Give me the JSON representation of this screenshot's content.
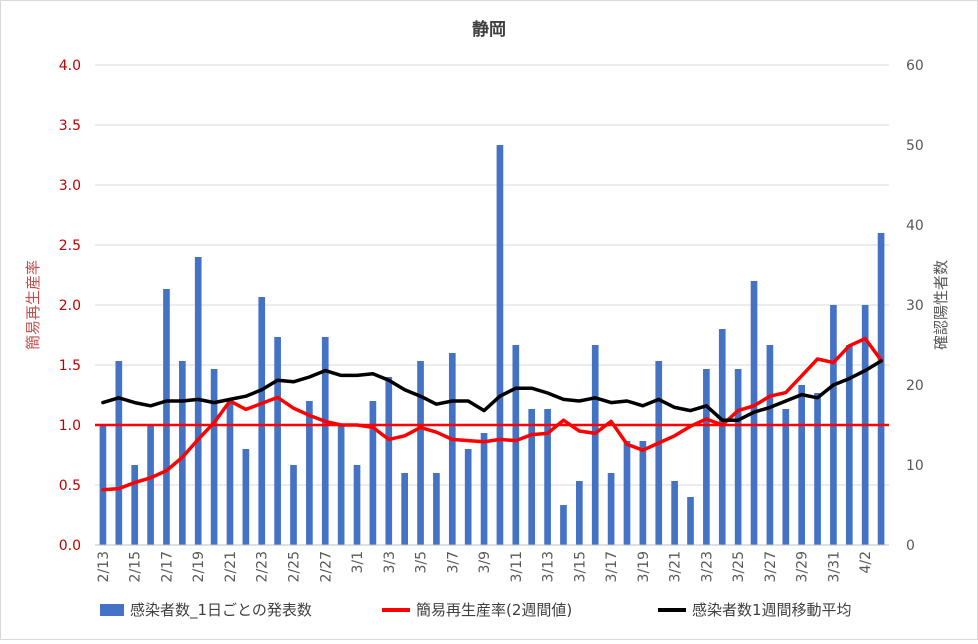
{
  "chart_data": {
    "type": "bar+line",
    "title": "静岡",
    "ylabel_left": "簡易再生産率",
    "ylabel_right": "確認陽性者数",
    "ylim_left": [
      0,
      4
    ],
    "ylim_right": [
      0,
      60
    ],
    "yticks_left": [
      "0.0",
      "0.5",
      "1.0",
      "1.5",
      "2.0",
      "2.5",
      "3.0",
      "3.5",
      "4.0"
    ],
    "yticks_right": [
      "0",
      "10",
      "20",
      "30",
      "40",
      "50",
      "60"
    ],
    "categories": [
      "2/13",
      "2/14",
      "2/15",
      "2/16",
      "2/17",
      "2/18",
      "2/19",
      "2/20",
      "2/21",
      "2/22",
      "2/23",
      "2/24",
      "2/25",
      "2/26",
      "2/27",
      "2/28",
      "3/1",
      "3/2",
      "3/3",
      "3/4",
      "3/5",
      "3/6",
      "3/7",
      "3/8",
      "3/9",
      "3/10",
      "3/11",
      "3/12",
      "3/13",
      "3/14",
      "3/15",
      "3/16",
      "3/17",
      "3/18",
      "3/19",
      "3/20",
      "3/21",
      "3/22",
      "3/23",
      "3/24",
      "3/25",
      "3/26",
      "3/27",
      "3/28",
      "3/29",
      "3/30",
      "3/31",
      "4/1",
      "4/2",
      "4/3"
    ],
    "xtick_labels": [
      "2/13",
      "2/15",
      "2/17",
      "2/19",
      "2/21",
      "2/23",
      "2/25",
      "2/27",
      "3/1",
      "3/3",
      "3/5",
      "3/7",
      "3/9",
      "3/11",
      "3/13",
      "3/15",
      "3/17",
      "3/19",
      "3/21",
      "3/23",
      "3/25",
      "3/27",
      "3/29",
      "3/31",
      "4/2"
    ],
    "reference_line": {
      "value": 1.0,
      "axis": "left",
      "color": "#ff0000"
    },
    "series": [
      {
        "name": "感染者数_1日ごとの発表数",
        "kind": "bar",
        "axis": "right",
        "color": "#4472c4",
        "values": [
          15,
          23,
          10,
          15,
          32,
          23,
          36,
          22,
          18,
          12,
          31,
          26,
          10,
          18,
          26,
          15,
          10,
          18,
          21,
          9,
          23,
          9,
          24,
          12,
          14,
          50,
          25,
          17,
          17,
          5,
          8,
          25,
          9,
          13,
          13,
          23,
          8,
          6,
          22,
          27,
          22,
          33,
          25,
          17,
          20,
          19,
          30,
          25,
          30,
          39
        ]
      },
      {
        "name": "簡易再生産率(2週間値)",
        "kind": "line",
        "axis": "left",
        "color": "#ff0000",
        "values": [
          0.46,
          0.47,
          0.52,
          0.56,
          0.62,
          0.73,
          0.88,
          1.02,
          1.2,
          1.13,
          1.18,
          1.23,
          1.14,
          1.08,
          1.03,
          1.0,
          1.0,
          0.98,
          0.88,
          0.91,
          0.98,
          0.94,
          0.88,
          0.87,
          0.86,
          0.88,
          0.87,
          0.92,
          0.93,
          1.04,
          0.95,
          0.93,
          1.03,
          0.84,
          0.79,
          0.85,
          0.91,
          0.99,
          1.05,
          1.0,
          1.12,
          1.16,
          1.24,
          1.27,
          1.41,
          1.55,
          1.52,
          1.66,
          1.72,
          1.54
        ]
      },
      {
        "name": "感染者数1週間移動平均",
        "kind": "line",
        "axis": "right",
        "color": "#000000",
        "values": [
          17.8,
          18.4,
          17.8,
          17.4,
          18.0,
          18.0,
          18.2,
          17.8,
          18.2,
          18.6,
          19.4,
          20.6,
          20.4,
          21.0,
          21.8,
          21.2,
          21.2,
          21.4,
          20.6,
          19.4,
          18.6,
          17.6,
          18.0,
          18.0,
          16.8,
          18.6,
          19.6,
          19.6,
          19.0,
          18.2,
          18.0,
          18.4,
          17.8,
          18.0,
          17.4,
          18.2,
          17.2,
          16.8,
          17.4,
          15.6,
          15.6,
          16.6,
          17.2,
          18.0,
          18.8,
          18.4,
          20.0,
          20.8,
          21.8,
          23.0
        ]
      }
    ],
    "legend_position": "bottom"
  }
}
